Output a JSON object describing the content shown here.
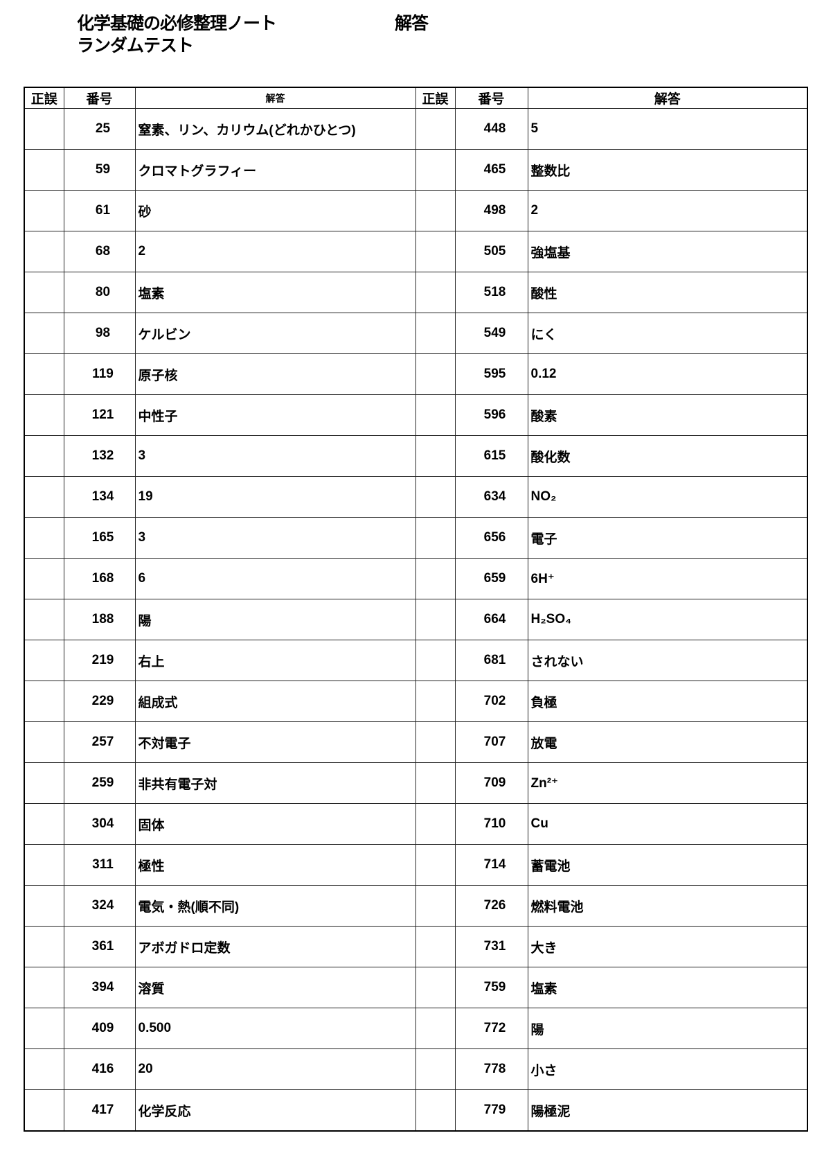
{
  "header": {
    "title": "化学基礎の必修整理ノート",
    "subtitle": "ランダムテスト",
    "label": "解答"
  },
  "table": {
    "columns": [
      "正誤",
      "番号",
      "解答",
      "正誤",
      "番号",
      "解答"
    ],
    "rows": [
      {
        "left_no": "25",
        "left_answer": "窒素、リン、カリウム(どれかひとつ)",
        "right_no": "448",
        "right_answer": "5"
      },
      {
        "left_no": "59",
        "left_answer": "クロマトグラフィー",
        "right_no": "465",
        "right_answer": "整数比"
      },
      {
        "left_no": "61",
        "left_answer": "砂",
        "right_no": "498",
        "right_answer": "2"
      },
      {
        "left_no": "68",
        "left_answer": "2",
        "right_no": "505",
        "right_answer": "強塩基"
      },
      {
        "left_no": "80",
        "left_answer": "塩素",
        "right_no": "518",
        "right_answer": "酸性"
      },
      {
        "left_no": "98",
        "left_answer": "ケルビン",
        "right_no": "549",
        "right_answer": "にく"
      },
      {
        "left_no": "119",
        "left_answer": "原子核",
        "right_no": "595",
        "right_answer": "0.12"
      },
      {
        "left_no": "121",
        "left_answer": "中性子",
        "right_no": "596",
        "right_answer": "酸素"
      },
      {
        "left_no": "132",
        "left_answer": "3",
        "right_no": "615",
        "right_answer": "酸化数"
      },
      {
        "left_no": "134",
        "left_answer": "19",
        "right_no": "634",
        "right_answer": "NO₂"
      },
      {
        "left_no": "165",
        "left_answer": "3",
        "right_no": "656",
        "right_answer": "電子"
      },
      {
        "left_no": "168",
        "left_answer": "6",
        "right_no": "659",
        "right_answer": "6H⁺"
      },
      {
        "left_no": "188",
        "left_answer": "陽",
        "right_no": "664",
        "right_answer": "H₂SO₄"
      },
      {
        "left_no": "219",
        "left_answer": "右上",
        "right_no": "681",
        "right_answer": "されない"
      },
      {
        "left_no": "229",
        "left_answer": "組成式",
        "right_no": "702",
        "right_answer": "負極"
      },
      {
        "left_no": "257",
        "left_answer": "不対電子",
        "right_no": "707",
        "right_answer": "放電"
      },
      {
        "left_no": "259",
        "left_answer": "非共有電子対",
        "right_no": "709",
        "right_answer": "Zn²⁺"
      },
      {
        "left_no": "304",
        "left_answer": "固体",
        "right_no": "710",
        "right_answer": "Cu"
      },
      {
        "left_no": "311",
        "left_answer": "極性",
        "right_no": "714",
        "right_answer": "蓄電池"
      },
      {
        "left_no": "324",
        "left_answer": "電気・熱(順不同)",
        "right_no": "726",
        "right_answer": "燃料電池"
      },
      {
        "left_no": "361",
        "left_answer": "アボガドロ定数",
        "right_no": "731",
        "right_answer": "大き"
      },
      {
        "left_no": "394",
        "left_answer": "溶質",
        "right_no": "759",
        "right_answer": "塩素"
      },
      {
        "left_no": "409",
        "left_answer": "0.500",
        "right_no": "772",
        "right_answer": "陽"
      },
      {
        "left_no": "416",
        "left_answer": "20",
        "right_no": "778",
        "right_answer": "小さ"
      },
      {
        "left_no": "417",
        "left_answer": "化学反応",
        "right_no": "779",
        "right_answer": "陽極泥"
      }
    ]
  }
}
